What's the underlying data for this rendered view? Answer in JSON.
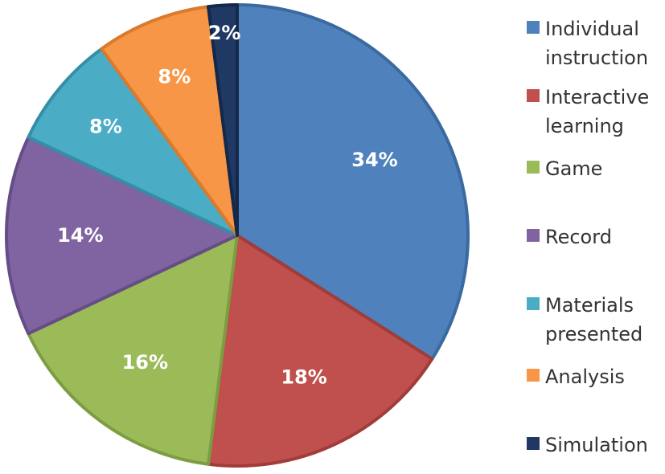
{
  "chart_data": {
    "type": "pie",
    "slices": [
      {
        "label": "Individual instruction",
        "value": 34,
        "display": "34%",
        "color": "#4f81bd",
        "edge": "#3a6aa0"
      },
      {
        "label": "Interactive learning",
        "value": 18,
        "display": "18%",
        "color": "#c0504d",
        "edge": "#a03c39"
      },
      {
        "label": "Game",
        "value": 16,
        "display": "16%",
        "color": "#9bbb59",
        "edge": "#7e9c42"
      },
      {
        "label": "Record",
        "value": 14,
        "display": "14%",
        "color": "#8064a2",
        "edge": "#654d86"
      },
      {
        "label": "Materials presented",
        "value": 8,
        "display": "8%",
        "color": "#4bacc6",
        "edge": "#348ea6"
      },
      {
        "label": "Analysis",
        "value": 8,
        "display": "8%",
        "color": "#f79646",
        "edge": "#d97a2c"
      },
      {
        "label": "Simulation",
        "value": 2,
        "display": "2%",
        "color": "#1f3864",
        "edge": "#142848"
      }
    ],
    "legend_position": "right",
    "legend": [
      {
        "lines": [
          "Individual",
          "instruction"
        ]
      },
      {
        "lines": [
          "Interactive",
          "learning"
        ]
      },
      {
        "lines": [
          "Game"
        ]
      },
      {
        "lines": [
          "Record"
        ]
      },
      {
        "lines": [
          "Materials",
          "presented"
        ]
      },
      {
        "lines": [
          "Analysis"
        ]
      },
      {
        "lines": [
          "Simulation"
        ]
      }
    ]
  }
}
